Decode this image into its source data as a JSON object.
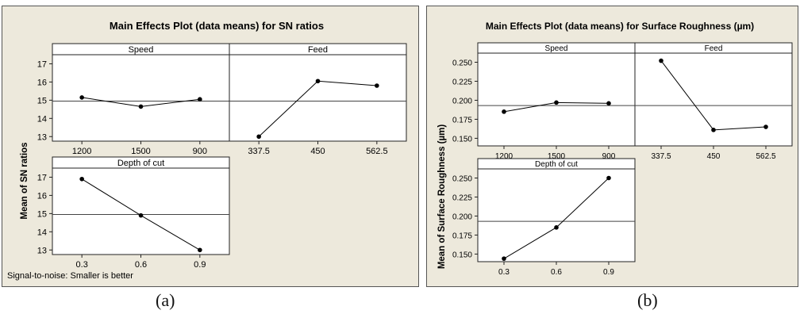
{
  "figure": {
    "caption_a": "(a)",
    "caption_b": "(b)"
  },
  "chart_data": [
    {
      "type": "line",
      "title": "Main Effects Plot (data means) for SN ratios",
      "ylabel": "Mean of SN ratios",
      "footnote": "Signal-to-noise: Smaller is better",
      "ylim": [
        12.75,
        17.5
      ],
      "yticks": [
        13,
        14,
        15,
        16,
        17
      ],
      "reference_line": 14.95,
      "grid": false,
      "panels": [
        {
          "name": "Speed",
          "categories": [
            "1200",
            "1500",
            "900"
          ],
          "values": [
            15.15,
            14.65,
            15.05
          ]
        },
        {
          "name": "Feed",
          "categories": [
            "337.5",
            "450",
            "562.5"
          ],
          "values": [
            13.0,
            16.05,
            15.8
          ]
        },
        {
          "name": "Depth of cut",
          "categories": [
            "0.3",
            "0.6",
            "0.9"
          ],
          "values": [
            16.9,
            14.9,
            13.0
          ]
        }
      ]
    },
    {
      "type": "line",
      "title": "Main Effects Plot (data means) for Surface Roughness (µm)",
      "ylabel": "Mean of Surface Roughness (µm)",
      "ylim": [
        0.14,
        0.262
      ],
      "yticks": [
        "0.150",
        "0.175",
        "0.200",
        "0.225",
        "0.250"
      ],
      "reference_line": 0.193,
      "grid": false,
      "panels": [
        {
          "name": "Speed",
          "categories": [
            "1200",
            "1500",
            "900"
          ],
          "values": [
            0.185,
            0.197,
            0.196
          ]
        },
        {
          "name": "Feed",
          "categories": [
            "337.5",
            "450",
            "562.5"
          ],
          "values": [
            0.252,
            0.161,
            0.165
          ]
        },
        {
          "name": "Depth of cut",
          "categories": [
            "0.3",
            "0.6",
            "0.9"
          ],
          "values": [
            0.144,
            0.185,
            0.25
          ]
        }
      ]
    }
  ]
}
